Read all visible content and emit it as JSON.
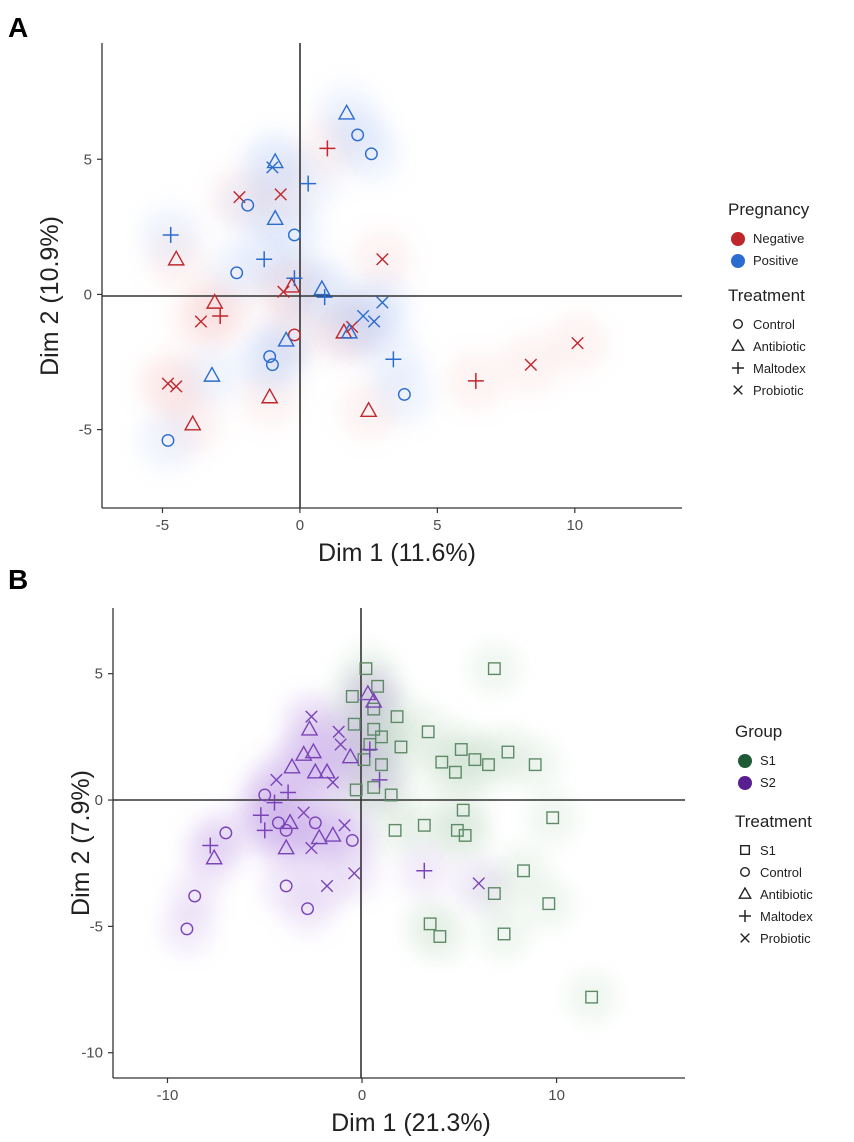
{
  "chart_data": [
    {
      "panel": "A",
      "type": "scatter",
      "xlabel": "Dim 1 (11.6%)",
      "ylabel": "Dim 2 (10.9%)",
      "xlim": [
        -7.2,
        13.9
      ],
      "ylim": [
        -7.9,
        9.3
      ],
      "xticks": [
        -5,
        0,
        5,
        10
      ],
      "yticks": [
        -5,
        0,
        5
      ],
      "grid": false,
      "reference_lines": {
        "x": 0,
        "y": 0
      },
      "legends": [
        {
          "title": "Pregnancy",
          "kind": "color",
          "items": [
            {
              "label": "Negative",
              "color": "#c0272d"
            },
            {
              "label": "Positive",
              "color": "#2a6ccf"
            }
          ]
        },
        {
          "title": "Treatment",
          "kind": "shape",
          "items": [
            {
              "label": "Control",
              "shape": "circle"
            },
            {
              "label": "Antibiotic",
              "shape": "triangle"
            },
            {
              "label": "Maltodex",
              "shape": "plus"
            },
            {
              "label": "Probiotic",
              "shape": "x"
            }
          ]
        }
      ],
      "series": [
        {
          "name": "Negative",
          "color": "#c0272d",
          "points": [
            {
              "x": 1.0,
              "y": 5.4,
              "shape": "plus"
            },
            {
              "x": -2.2,
              "y": 3.6,
              "shape": "x"
            },
            {
              "x": -0.7,
              "y": 3.7,
              "shape": "x"
            },
            {
              "x": -4.5,
              "y": 1.3,
              "shape": "triangle"
            },
            {
              "x": 3.0,
              "y": 1.3,
              "shape": "x"
            },
            {
              "x": -0.3,
              "y": 0.3,
              "shape": "triangle"
            },
            {
              "x": -0.6,
              "y": 0.1,
              "shape": "x"
            },
            {
              "x": -3.1,
              "y": -0.3,
              "shape": "triangle"
            },
            {
              "x": -3.6,
              "y": -1.0,
              "shape": "x"
            },
            {
              "x": -2.9,
              "y": -0.8,
              "shape": "plus"
            },
            {
              "x": -0.2,
              "y": -1.5,
              "shape": "circle"
            },
            {
              "x": 1.6,
              "y": -1.4,
              "shape": "triangle"
            },
            {
              "x": 1.9,
              "y": -1.2,
              "shape": "x"
            },
            {
              "x": -4.8,
              "y": -3.3,
              "shape": "x"
            },
            {
              "x": -4.5,
              "y": -3.4,
              "shape": "x"
            },
            {
              "x": -3.9,
              "y": -4.8,
              "shape": "triangle"
            },
            {
              "x": -1.1,
              "y": -3.8,
              "shape": "triangle"
            },
            {
              "x": 2.5,
              "y": -4.3,
              "shape": "triangle"
            },
            {
              "x": 6.4,
              "y": -3.2,
              "shape": "plus"
            },
            {
              "x": 8.4,
              "y": -2.6,
              "shape": "x"
            },
            {
              "x": 10.1,
              "y": -1.8,
              "shape": "x"
            }
          ]
        },
        {
          "name": "Positive",
          "color": "#2a6ccf",
          "points": [
            {
              "x": 1.7,
              "y": 6.7,
              "shape": "triangle"
            },
            {
              "x": 2.1,
              "y": 5.9,
              "shape": "circle"
            },
            {
              "x": 2.6,
              "y": 5.2,
              "shape": "circle"
            },
            {
              "x": -0.9,
              "y": 4.9,
              "shape": "triangle"
            },
            {
              "x": -1.0,
              "y": 4.7,
              "shape": "x"
            },
            {
              "x": 0.3,
              "y": 4.1,
              "shape": "plus"
            },
            {
              "x": -1.9,
              "y": 3.3,
              "shape": "circle"
            },
            {
              "x": -0.9,
              "y": 2.8,
              "shape": "triangle"
            },
            {
              "x": -4.7,
              "y": 2.2,
              "shape": "plus"
            },
            {
              "x": -0.2,
              "y": 2.2,
              "shape": "circle"
            },
            {
              "x": -1.3,
              "y": 1.3,
              "shape": "plus"
            },
            {
              "x": -2.3,
              "y": 0.8,
              "shape": "circle"
            },
            {
              "x": -0.2,
              "y": 0.6,
              "shape": "plus"
            },
            {
              "x": 0.8,
              "y": 0.2,
              "shape": "triangle"
            },
            {
              "x": 0.9,
              "y": -0.1,
              "shape": "plus"
            },
            {
              "x": 3.0,
              "y": -0.3,
              "shape": "x"
            },
            {
              "x": 2.3,
              "y": -0.8,
              "shape": "x"
            },
            {
              "x": 2.7,
              "y": -1.0,
              "shape": "x"
            },
            {
              "x": 1.8,
              "y": -1.4,
              "shape": "triangle"
            },
            {
              "x": -0.5,
              "y": -1.7,
              "shape": "triangle"
            },
            {
              "x": -1.1,
              "y": -2.3,
              "shape": "circle"
            },
            {
              "x": -1.0,
              "y": -2.6,
              "shape": "circle"
            },
            {
              "x": -3.2,
              "y": -3.0,
              "shape": "triangle"
            },
            {
              "x": 3.4,
              "y": -2.4,
              "shape": "plus"
            },
            {
              "x": 3.8,
              "y": -3.7,
              "shape": "circle"
            },
            {
              "x": -4.8,
              "y": -5.4,
              "shape": "circle"
            }
          ]
        }
      ]
    },
    {
      "panel": "B",
      "type": "scatter",
      "xlabel": "Dim 1 (21.3%)",
      "ylabel": "Dim 2 (7.9%)",
      "xlim": [
        -12.8,
        16.6
      ],
      "ylim": [
        -11.0,
        7.6
      ],
      "xticks": [
        -10,
        0,
        10
      ],
      "yticks": [
        -10,
        -5,
        0,
        5
      ],
      "grid": false,
      "reference_lines": {
        "x": 0,
        "y": 0
      },
      "legends": [
        {
          "title": "Group",
          "kind": "color",
          "items": [
            {
              "label": "S1",
              "color": "#1f5a36"
            },
            {
              "label": "S2",
              "color": "#5a1f8f"
            }
          ]
        },
        {
          "title": "Treatment",
          "kind": "shape",
          "items": [
            {
              "label": "S1",
              "shape": "square"
            },
            {
              "label": "Control",
              "shape": "circle"
            },
            {
              "label": "Antibiotic",
              "shape": "triangle"
            },
            {
              "label": "Maltodex",
              "shape": "plus"
            },
            {
              "label": "Probiotic",
              "shape": "x"
            }
          ]
        }
      ],
      "series": [
        {
          "name": "S1",
          "color": "#5f8a6a",
          "points": [
            {
              "x": 0.2,
              "y": 5.2,
              "shape": "square"
            },
            {
              "x": 6.8,
              "y": 5.2,
              "shape": "square"
            },
            {
              "x": -0.5,
              "y": 4.1,
              "shape": "square"
            },
            {
              "x": 0.8,
              "y": 4.5,
              "shape": "square"
            },
            {
              "x": 0.6,
              "y": 3.6,
              "shape": "square"
            },
            {
              "x": 1.8,
              "y": 3.3,
              "shape": "square"
            },
            {
              "x": -0.4,
              "y": 3.0,
              "shape": "square"
            },
            {
              "x": 0.6,
              "y": 2.8,
              "shape": "square"
            },
            {
              "x": 1.0,
              "y": 2.5,
              "shape": "square"
            },
            {
              "x": 3.4,
              "y": 2.7,
              "shape": "square"
            },
            {
              "x": 0.4,
              "y": 2.2,
              "shape": "square"
            },
            {
              "x": 2.0,
              "y": 2.1,
              "shape": "square"
            },
            {
              "x": 5.1,
              "y": 2.0,
              "shape": "square"
            },
            {
              "x": 7.5,
              "y": 1.9,
              "shape": "square"
            },
            {
              "x": 0.1,
              "y": 1.6,
              "shape": "square"
            },
            {
              "x": 1.0,
              "y": 1.4,
              "shape": "square"
            },
            {
              "x": 4.1,
              "y": 1.5,
              "shape": "square"
            },
            {
              "x": 5.8,
              "y": 1.6,
              "shape": "square"
            },
            {
              "x": 6.5,
              "y": 1.4,
              "shape": "square"
            },
            {
              "x": 8.9,
              "y": 1.4,
              "shape": "square"
            },
            {
              "x": 4.8,
              "y": 1.1,
              "shape": "square"
            },
            {
              "x": -0.3,
              "y": 0.4,
              "shape": "square"
            },
            {
              "x": 0.6,
              "y": 0.5,
              "shape": "square"
            },
            {
              "x": 1.5,
              "y": 0.2,
              "shape": "square"
            },
            {
              "x": 5.2,
              "y": -0.4,
              "shape": "square"
            },
            {
              "x": 9.8,
              "y": -0.7,
              "shape": "square"
            },
            {
              "x": 1.7,
              "y": -1.2,
              "shape": "square"
            },
            {
              "x": 3.2,
              "y": -1.0,
              "shape": "square"
            },
            {
              "x": 4.9,
              "y": -1.2,
              "shape": "square"
            },
            {
              "x": 5.3,
              "y": -1.4,
              "shape": "square"
            },
            {
              "x": 6.8,
              "y": -3.7,
              "shape": "square"
            },
            {
              "x": 8.3,
              "y": -2.8,
              "shape": "square"
            },
            {
              "x": 9.6,
              "y": -4.1,
              "shape": "square"
            },
            {
              "x": 3.5,
              "y": -4.9,
              "shape": "square"
            },
            {
              "x": 4.0,
              "y": -5.4,
              "shape": "square"
            },
            {
              "x": 7.3,
              "y": -5.3,
              "shape": "square"
            },
            {
              "x": 11.8,
              "y": -7.8,
              "shape": "square"
            }
          ]
        },
        {
          "name": "S2",
          "color": "#7a44b8",
          "points": [
            {
              "x": 0.3,
              "y": 4.2,
              "shape": "triangle"
            },
            {
              "x": 0.6,
              "y": 3.9,
              "shape": "triangle"
            },
            {
              "x": -2.6,
              "y": 3.3,
              "shape": "x"
            },
            {
              "x": -2.7,
              "y": 2.8,
              "shape": "triangle"
            },
            {
              "x": -1.2,
              "y": 2.7,
              "shape": "x"
            },
            {
              "x": -1.1,
              "y": 2.2,
              "shape": "x"
            },
            {
              "x": -3.0,
              "y": 1.8,
              "shape": "triangle"
            },
            {
              "x": -2.5,
              "y": 1.9,
              "shape": "triangle"
            },
            {
              "x": 0.4,
              "y": 2.0,
              "shape": "plus"
            },
            {
              "x": -0.6,
              "y": 1.7,
              "shape": "triangle"
            },
            {
              "x": -3.6,
              "y": 1.3,
              "shape": "triangle"
            },
            {
              "x": -2.4,
              "y": 1.1,
              "shape": "triangle"
            },
            {
              "x": -1.8,
              "y": 1.1,
              "shape": "triangle"
            },
            {
              "x": -4.4,
              "y": 0.8,
              "shape": "x"
            },
            {
              "x": -1.5,
              "y": 0.7,
              "shape": "x"
            },
            {
              "x": 0.9,
              "y": 0.8,
              "shape": "plus"
            },
            {
              "x": -5.0,
              "y": 0.2,
              "shape": "circle"
            },
            {
              "x": -3.8,
              "y": 0.3,
              "shape": "plus"
            },
            {
              "x": -4.5,
              "y": -0.1,
              "shape": "plus"
            },
            {
              "x": -3.0,
              "y": -0.5,
              "shape": "x"
            },
            {
              "x": -5.2,
              "y": -0.6,
              "shape": "plus"
            },
            {
              "x": -4.3,
              "y": -0.9,
              "shape": "circle"
            },
            {
              "x": -3.7,
              "y": -0.9,
              "shape": "triangle"
            },
            {
              "x": -2.4,
              "y": -0.9,
              "shape": "circle"
            },
            {
              "x": -0.9,
              "y": -1.0,
              "shape": "x"
            },
            {
              "x": -5.0,
              "y": -1.2,
              "shape": "plus"
            },
            {
              "x": -3.9,
              "y": -1.2,
              "shape": "circle"
            },
            {
              "x": -2.2,
              "y": -1.5,
              "shape": "triangle"
            },
            {
              "x": -1.5,
              "y": -1.4,
              "shape": "triangle"
            },
            {
              "x": -7.0,
              "y": -1.3,
              "shape": "circle"
            },
            {
              "x": -3.9,
              "y": -1.9,
              "shape": "triangle"
            },
            {
              "x": -2.6,
              "y": -1.9,
              "shape": "x"
            },
            {
              "x": -0.5,
              "y": -1.6,
              "shape": "circle"
            },
            {
              "x": -7.8,
              "y": -1.8,
              "shape": "plus"
            },
            {
              "x": -7.6,
              "y": -2.3,
              "shape": "triangle"
            },
            {
              "x": -0.4,
              "y": -2.9,
              "shape": "x"
            },
            {
              "x": -3.9,
              "y": -3.4,
              "shape": "circle"
            },
            {
              "x": -1.8,
              "y": -3.4,
              "shape": "x"
            },
            {
              "x": 3.2,
              "y": -2.8,
              "shape": "plus"
            },
            {
              "x": 6.0,
              "y": -3.3,
              "shape": "x"
            },
            {
              "x": -8.6,
              "y": -3.8,
              "shape": "circle"
            },
            {
              "x": -2.8,
              "y": -4.3,
              "shape": "circle"
            },
            {
              "x": -9.0,
              "y": -5.1,
              "shape": "circle"
            }
          ]
        }
      ]
    }
  ]
}
